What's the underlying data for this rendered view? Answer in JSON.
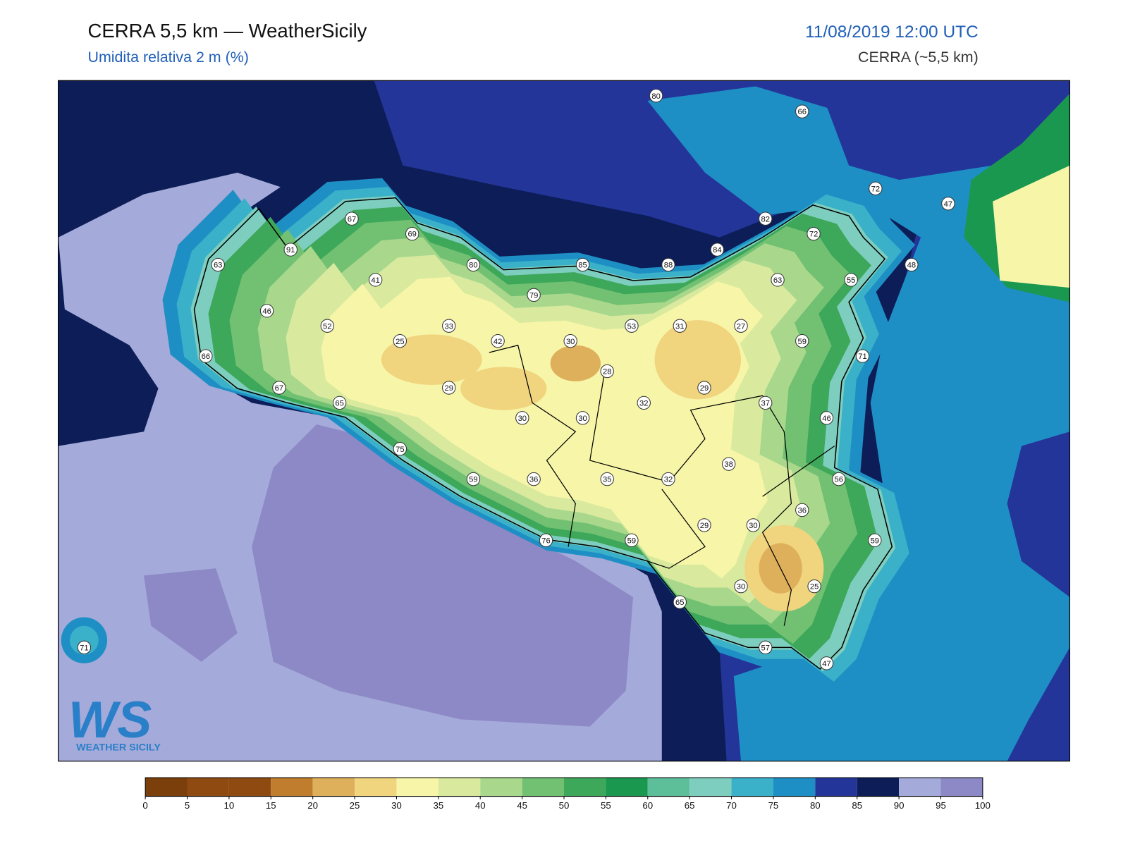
{
  "header": {
    "title": "CERRA 5,5 km — WeatherSicily",
    "subtitle": "Umidita relativa 2 m (%)",
    "date": "11/08/2019 12:00 UTC",
    "model": "CERRA (~5,5 km)"
  },
  "logo": {
    "mark": "WS",
    "text": "WEATHER SICILY"
  },
  "stations": [
    80,
    66,
    72,
    47,
    82,
    72,
    67,
    69,
    91,
    84,
    63,
    80,
    85,
    88,
    63,
    55,
    48,
    41,
    79,
    46,
    52,
    33,
    53,
    31,
    27,
    25,
    42,
    30,
    59,
    71,
    66,
    28,
    29,
    29,
    67,
    32,
    37,
    65,
    30,
    30,
    46,
    75,
    38,
    59,
    36,
    35,
    32,
    56,
    36,
    29,
    30,
    76,
    59,
    59,
    30,
    25,
    65,
    57,
    47,
    71
  ],
  "colorbar": {
    "ticks": [
      0,
      5,
      10,
      15,
      20,
      25,
      30,
      35,
      40,
      45,
      50,
      55,
      60,
      65,
      70,
      75,
      80,
      85,
      90,
      95,
      100
    ],
    "colors": [
      "#7b3f0b",
      "#8e4a10",
      "#8e4a10",
      "#c07d2d",
      "#dfb05b",
      "#f0d47e",
      "#f7f5a8",
      "#d9ea9f",
      "#a9d88c",
      "#72c173",
      "#3da75a",
      "#1a9850",
      "#5cbf9a",
      "#7ecebf",
      "#3ab0c9",
      "#1e8fc4",
      "#24359a",
      "#0c1d57",
      "#a4aad9",
      "#8d89c6"
    ]
  }
}
